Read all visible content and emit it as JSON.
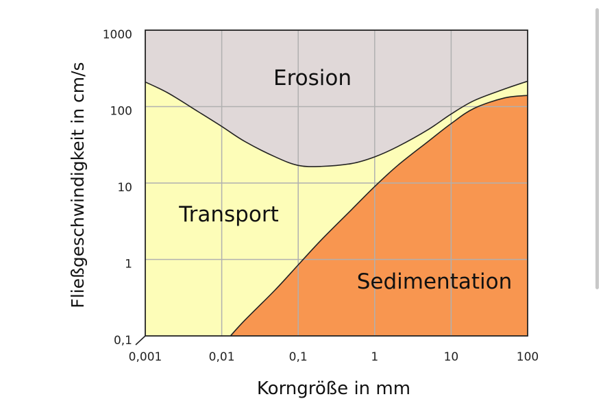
{
  "chart_data": {
    "type": "area",
    "title": "",
    "xlabel": "Korngröße in mm",
    "ylabel": "Fließgeschwindigkeit in cm/s",
    "xscale": "log",
    "yscale": "log",
    "xlim": [
      0.001,
      100
    ],
    "ylim": [
      0.1,
      1000
    ],
    "xticks": [
      "0,001",
      "0,01",
      "0,1",
      "1",
      "10",
      "100"
    ],
    "yticks": [
      "1000",
      "100",
      "10",
      "1",
      "0,1"
    ],
    "grid": true,
    "regions": [
      {
        "name": "Erosion",
        "label": "Erosion",
        "color": "#e0d8d8"
      },
      {
        "name": "Transport",
        "label": "Transport",
        "color": "#fdfdb8"
      },
      {
        "name": "Sedimentation",
        "label": "Sedimentation",
        "color": "#f89650"
      }
    ],
    "series": [
      {
        "name": "Erosion threshold",
        "x": [
          0.001,
          0.002,
          0.005,
          0.01,
          0.02,
          0.05,
          0.1,
          0.2,
          0.5,
          1,
          2,
          5,
          10,
          20,
          50,
          100
        ],
        "y": [
          210,
          150,
          85,
          55,
          35,
          22,
          17,
          16.5,
          18,
          22,
          30,
          50,
          80,
          120,
          170,
          215
        ]
      },
      {
        "name": "Sedimentation threshold",
        "x": [
          0.013,
          0.02,
          0.05,
          0.1,
          0.2,
          0.5,
          1,
          2,
          5,
          10,
          20,
          50,
          100
        ],
        "y": [
          0.1,
          0.16,
          0.4,
          0.85,
          1.8,
          4.5,
          9,
          17,
          35,
          60,
          95,
          130,
          140
        ]
      }
    ]
  },
  "colors": {
    "erosion": "#e0d8d8",
    "transport": "#fdfdb8",
    "sedimentation": "#f89650",
    "grid": "#b0b0b0",
    "line": "#222222",
    "frame": "#222222"
  }
}
